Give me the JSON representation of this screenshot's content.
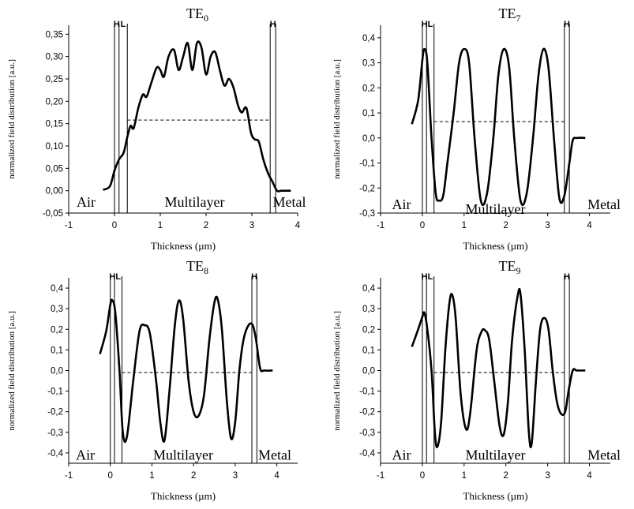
{
  "chart_data": [
    {
      "type": "line",
      "title": "TE",
      "title_subscript": "0",
      "xlabel": "Thickness (µm)",
      "ylabel": "normalized field distribution [a.u.]",
      "xlim": [
        -1,
        4
      ],
      "ylim": [
        -0.05,
        0.37
      ],
      "xticks": [
        -1,
        0,
        1,
        2,
        3,
        4
      ],
      "xtick_labels": [
        "-1",
        "0",
        "1",
        "2",
        "3",
        "4"
      ],
      "yticks": [
        -0.05,
        0.0,
        0.05,
        0.1,
        0.15,
        0.2,
        0.25,
        0.3,
        0.35
      ],
      "ytick_labels": [
        "-0,05",
        "0,00",
        "0,05",
        "0,10",
        "0,15",
        "0,20",
        "0,25",
        "0,30",
        "0,35"
      ],
      "region_labels": [
        {
          "text": "Air",
          "x": -0.62,
          "y": -0.025
        },
        {
          "text": "Multilayer",
          "x": 1.75,
          "y": -0.025
        },
        {
          "text": "Metal",
          "x": 3.82,
          "y": -0.025
        }
      ],
      "layer_boundaries": [
        0.0,
        0.1,
        0.28,
        3.4,
        3.52
      ],
      "layer_labels": [
        {
          "text": "H",
          "x": 0.05
        },
        {
          "text": "L",
          "x": 0.19
        },
        {
          "text": "H",
          "x": 3.46
        }
      ],
      "dashed_line": {
        "x": [
          0.28,
          3.4
        ],
        "y": 0.158
      },
      "series": [
        {
          "x": [
            -0.25,
            -0.1,
            0.0,
            0.1,
            0.2,
            0.28,
            0.35,
            0.42,
            0.52,
            0.62,
            0.7,
            0.8,
            0.92,
            1.0,
            1.08,
            1.18,
            1.3,
            1.4,
            1.5,
            1.6,
            1.7,
            1.8,
            1.9,
            2.0,
            2.1,
            2.2,
            2.3,
            2.4,
            2.5,
            2.6,
            2.7,
            2.78,
            2.88,
            2.98,
            3.06,
            3.15,
            3.25,
            3.35,
            3.45,
            3.55,
            3.65,
            3.85
          ],
          "y": [
            0.002,
            0.01,
            0.045,
            0.07,
            0.085,
            0.12,
            0.145,
            0.14,
            0.185,
            0.215,
            0.21,
            0.24,
            0.275,
            0.27,
            0.255,
            0.3,
            0.315,
            0.27,
            0.3,
            0.33,
            0.27,
            0.33,
            0.32,
            0.26,
            0.3,
            0.31,
            0.27,
            0.235,
            0.25,
            0.23,
            0.19,
            0.175,
            0.185,
            0.13,
            0.115,
            0.11,
            0.07,
            0.04,
            0.02,
            0.0,
            0.0,
            0.0
          ]
        }
      ]
    },
    {
      "type": "line",
      "title": "TE",
      "title_subscript": "7",
      "xlabel": "Thickness (µm)",
      "ylabel": "normalized field distribution [a.u.]",
      "xlim": [
        -1,
        4.5
      ],
      "ylim": [
        -0.3,
        0.45
      ],
      "xticks": [
        -1,
        0,
        1,
        2,
        3,
        4
      ],
      "xtick_labels": [
        "-1",
        "0",
        "1",
        "2",
        "3",
        "4"
      ],
      "yticks": [
        -0.3,
        -0.2,
        -0.1,
        0.0,
        0.1,
        0.2,
        0.3,
        0.4
      ],
      "ytick_labels": [
        "-0,3",
        "-0,2",
        "-0,1",
        "0,0",
        "0,1",
        "0,2",
        "0,3",
        "0,4"
      ],
      "region_labels": [
        {
          "text": "Air",
          "x": -0.5,
          "y": -0.265
        },
        {
          "text": "Multilayer",
          "x": 1.75,
          "y": -0.285
        },
        {
          "text": "Metal",
          "x": 4.35,
          "y": -0.265
        }
      ],
      "layer_boundaries": [
        0.0,
        0.1,
        0.28,
        3.4,
        3.52
      ],
      "layer_labels": [
        {
          "text": "H",
          "x": 0.05
        },
        {
          "text": "L",
          "x": 0.19
        },
        {
          "text": "H",
          "x": 3.46
        }
      ],
      "dashed_line": {
        "x": [
          0.28,
          3.4
        ],
        "y": 0.065
      },
      "series": [
        {
          "x": [
            -0.25,
            -0.1,
            0.0,
            0.05,
            0.12,
            0.22,
            0.32,
            0.4,
            0.5,
            0.6,
            0.75,
            0.88,
            1.0,
            1.12,
            1.25,
            1.4,
            1.55,
            1.7,
            1.82,
            1.95,
            2.08,
            2.2,
            2.35,
            2.5,
            2.65,
            2.78,
            2.9,
            3.02,
            3.15,
            3.28,
            3.4,
            3.52,
            3.6,
            3.7,
            3.9
          ],
          "y": [
            0.055,
            0.15,
            0.31,
            0.355,
            0.3,
            0.0,
            -0.22,
            -0.25,
            -0.23,
            -0.1,
            0.1,
            0.3,
            0.355,
            0.3,
            0.0,
            -0.25,
            -0.22,
            0.0,
            0.25,
            0.355,
            0.28,
            0.0,
            -0.25,
            -0.22,
            0.0,
            0.25,
            0.355,
            0.28,
            0.0,
            -0.24,
            -0.23,
            -0.1,
            -0.01,
            0.0,
            0.0
          ]
        }
      ]
    },
    {
      "type": "line",
      "title": "TE",
      "title_subscript": "8",
      "xlabel": "Thickness (µm)",
      "ylabel": "normalized field distribution [a.u.]",
      "xlim": [
        -1,
        4.5
      ],
      "ylim": [
        -0.45,
        0.45
      ],
      "xticks": [
        -1,
        0,
        1,
        2,
        3,
        4
      ],
      "xtick_labels": [
        "-1",
        "0",
        "1",
        "2",
        "3",
        "4"
      ],
      "yticks": [
        -0.4,
        -0.3,
        -0.2,
        -0.1,
        0.0,
        0.1,
        0.2,
        0.3,
        0.4
      ],
      "ytick_labels": [
        "-0,4",
        "-0,3",
        "-0,2",
        "-0,1",
        "0,0",
        "0,1",
        "0,2",
        "0,3",
        "0,4"
      ],
      "region_labels": [
        {
          "text": "Air",
          "x": -0.6,
          "y": -0.41
        },
        {
          "text": "Multilayer",
          "x": 1.75,
          "y": -0.41
        },
        {
          "text": "Metal",
          "x": 3.95,
          "y": -0.41
        }
      ],
      "layer_boundaries": [
        0.0,
        0.1,
        0.28,
        3.4,
        3.52
      ],
      "layer_labels": [
        {
          "text": "H",
          "x": 0.05
        },
        {
          "text": "L",
          "x": 0.19
        },
        {
          "text": "H",
          "x": 3.46
        }
      ],
      "dashed_line": {
        "x": [
          0.28,
          3.4
        ],
        "y": -0.01
      },
      "series": [
        {
          "x": [
            -0.25,
            -0.1,
            0.0,
            0.05,
            0.12,
            0.22,
            0.3,
            0.4,
            0.55,
            0.7,
            0.82,
            0.95,
            1.1,
            1.2,
            1.3,
            1.42,
            1.55,
            1.65,
            1.75,
            1.88,
            2.0,
            2.12,
            2.25,
            2.38,
            2.5,
            2.58,
            2.68,
            2.8,
            2.9,
            3.0,
            3.1,
            3.2,
            3.32,
            3.42,
            3.5,
            3.6,
            3.7,
            3.9
          ],
          "y": [
            0.08,
            0.19,
            0.32,
            0.34,
            0.28,
            0.0,
            -0.3,
            -0.32,
            -0.05,
            0.19,
            0.22,
            0.18,
            -0.05,
            -0.25,
            -0.34,
            -0.1,
            0.22,
            0.34,
            0.25,
            -0.05,
            -0.2,
            -0.22,
            -0.12,
            0.15,
            0.33,
            0.345,
            0.2,
            -0.15,
            -0.33,
            -0.25,
            0.0,
            0.15,
            0.22,
            0.22,
            0.15,
            0.01,
            0.0,
            0.0
          ]
        }
      ]
    },
    {
      "type": "line",
      "title": "TE",
      "title_subscript": "9",
      "xlabel": "Thickness (µm)",
      "ylabel": "normalized field distribution [a.u.]",
      "xlim": [
        -1,
        4.5
      ],
      "ylim": [
        -0.45,
        0.45
      ],
      "xticks": [
        -1,
        0,
        1,
        2,
        3,
        4
      ],
      "xtick_labels": [
        "-1",
        "0",
        "1",
        "2",
        "3",
        "4"
      ],
      "yticks": [
        -0.4,
        -0.3,
        -0.2,
        -0.1,
        0.0,
        0.1,
        0.2,
        0.3,
        0.4
      ],
      "ytick_labels": [
        "-0,4",
        "-0,3",
        "-0,2",
        "-0,1",
        "0,0",
        "0,1",
        "0,2",
        "0,3",
        "0,4"
      ],
      "region_labels": [
        {
          "text": "Air",
          "x": -0.5,
          "y": -0.41
        },
        {
          "text": "Multilayer",
          "x": 1.75,
          "y": -0.41
        },
        {
          "text": "Metal",
          "x": 4.35,
          "y": -0.41
        }
      ],
      "layer_boundaries": [
        0.0,
        0.1,
        0.28,
        3.4,
        3.52
      ],
      "layer_labels": [
        {
          "text": "H",
          "x": 0.05
        },
        {
          "text": "L",
          "x": 0.19
        },
        {
          "text": "H",
          "x": 3.46
        }
      ],
      "dashed_line": {
        "x": [
          0.28,
          3.4
        ],
        "y": -0.01
      },
      "series": [
        {
          "x": [
            -0.25,
            -0.1,
            0.0,
            0.05,
            0.12,
            0.22,
            0.3,
            0.36,
            0.45,
            0.55,
            0.65,
            0.72,
            0.8,
            0.92,
            1.05,
            1.15,
            1.3,
            1.42,
            1.5,
            1.6,
            1.72,
            1.85,
            1.95,
            2.05,
            2.15,
            2.28,
            2.35,
            2.45,
            2.55,
            2.62,
            2.72,
            2.82,
            2.92,
            3.02,
            3.12,
            3.22,
            3.32,
            3.42,
            3.5,
            3.6,
            3.7,
            3.9
          ],
          "y": [
            0.115,
            0.2,
            0.26,
            0.28,
            0.2,
            0.0,
            -0.3,
            -0.37,
            -0.25,
            0.1,
            0.33,
            0.365,
            0.25,
            -0.12,
            -0.285,
            -0.2,
            0.1,
            0.19,
            0.195,
            0.15,
            -0.05,
            -0.27,
            -0.31,
            -0.15,
            0.15,
            0.36,
            0.37,
            0.1,
            -0.3,
            -0.35,
            -0.05,
            0.2,
            0.255,
            0.2,
            0.0,
            -0.15,
            -0.21,
            -0.2,
            -0.1,
            0.0,
            0.0,
            0.0
          ]
        }
      ]
    }
  ]
}
